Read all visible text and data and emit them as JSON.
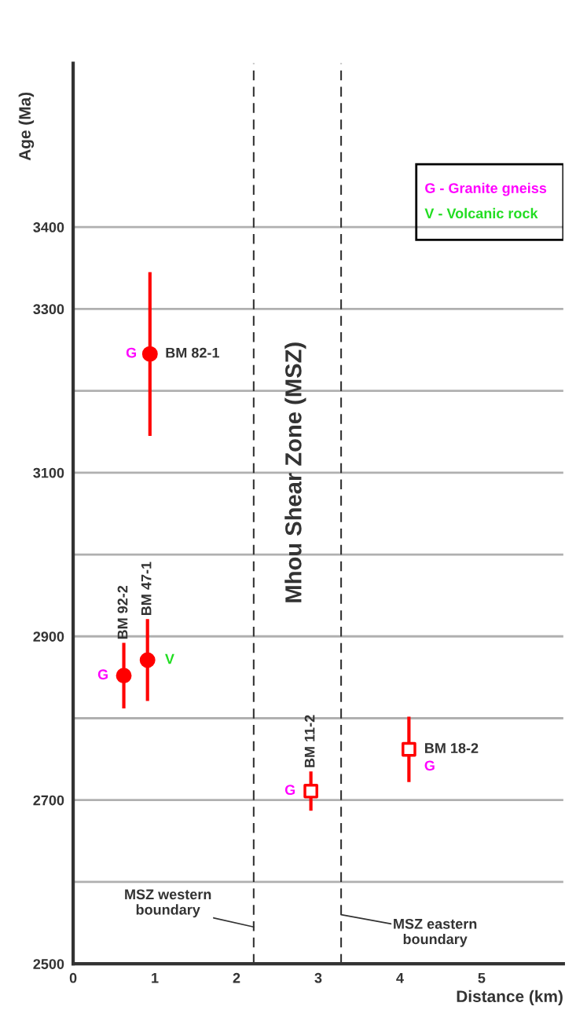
{
  "chart_data": {
    "type": "scatter",
    "xlabel": "Distance (km)",
    "ylabel": "Age (Ma)",
    "xlim": [
      0,
      6
    ],
    "xticks": [
      0,
      1,
      2,
      3,
      4,
      5
    ],
    "ylim": [
      2500,
      3600
    ],
    "yticks": [
      2500,
      {
        "value": 2600,
        "label": null
      },
      2700,
      {
        "value": 2800,
        "label": null
      },
      2900,
      {
        "value": 3000,
        "label": null
      },
      3100,
      {
        "value": 3200,
        "label": null
      },
      3300,
      3400
    ],
    "grid": "y",
    "series": [
      {
        "color": "#ff0000",
        "marker": "circle",
        "x": [
          0.94,
          0.62,
          0.91
        ],
        "values": [
          3245,
          2852,
          2871
        ],
        "errors": [
          100,
          40,
          50
        ]
      },
      {
        "color": "#ff0000",
        "marker": "square",
        "x": [
          2.91,
          4.11
        ],
        "values": [
          2711,
          2762
        ],
        "errors": [
          24,
          40
        ]
      }
    ],
    "ref_lines": [
      {
        "axis": "x",
        "value": 2.21,
        "label": "MSZ western\nboundary",
        "color": "#333333",
        "line_style": "dashed"
      },
      {
        "axis": "x",
        "value": 3.28,
        "label": "MSZ eastern\nboundary",
        "color": "#333333",
        "line_style": "dashed"
      }
    ],
    "annotations": [
      "G - Granite gneiss",
      "V - Volcanic rock",
      {
        "text": "Mhou Shear Zone (MSZ)"
      },
      {
        "text": "BM 82-1",
        "x": 0.94,
        "y": 3245
      },
      {
        "text": "G",
        "x": 0.94,
        "y": 3245
      },
      {
        "text": "BM 92-2",
        "x": 0.62,
        "y": 2892
      },
      {
        "text": "G",
        "x": 0.62,
        "y": 2852
      },
      {
        "text": "BM 47-1",
        "x": 0.91,
        "y": 2921
      },
      {
        "text": "V",
        "x": 0.91,
        "y": 2871
      },
      {
        "text": "BM 11-2",
        "x": 2.91,
        "y": 2735
      },
      {
        "text": "G",
        "x": 2.91,
        "y": 2711
      },
      {
        "text": "BM 18-2",
        "x": 4.11,
        "y": 2762
      },
      {
        "text": "G",
        "x": 4.11,
        "y": 2762
      }
    ]
  }
}
